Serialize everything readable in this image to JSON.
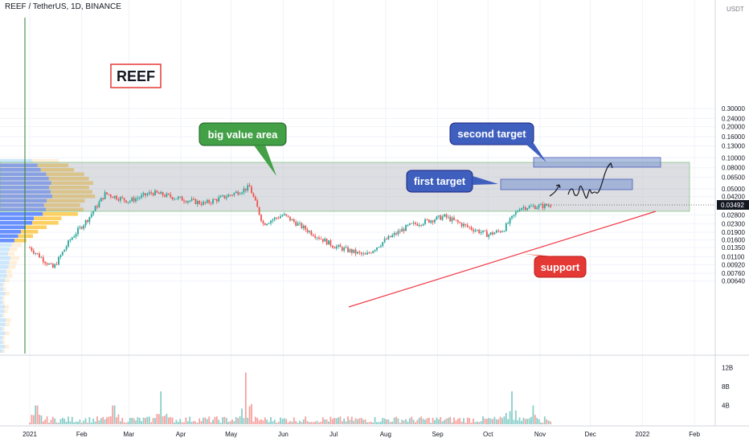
{
  "header": {
    "symbol_line": "REEF / TetherUS, 1D, BINANCE"
  },
  "price_axis": {
    "unit": "USDT",
    "ticks": [
      "0.30000",
      "0.24000",
      "0.20000",
      "0.16000",
      "0.13000",
      "0.10000",
      "0.08000",
      "0.06500",
      "0.05000",
      "0.04200",
      "0.02800",
      "0.02300",
      "0.01900",
      "0.01600",
      "0.01350",
      "0.01100",
      "0.00920",
      "0.00760",
      "0.00640"
    ],
    "last_price": "0.03492",
    "scale": "log"
  },
  "volume_axis": {
    "ticks": [
      "12B",
      "8B",
      "4B"
    ]
  },
  "time_axis": {
    "labels": [
      "2021",
      "Feb",
      "Mar",
      "Apr",
      "May",
      "Jun",
      "Jul",
      "Aug",
      "Sep",
      "Oct",
      "Nov",
      "Dec",
      "2022",
      "Feb"
    ]
  },
  "annotations": {
    "ticker_box": "REEF",
    "value_area": "big value area",
    "second_target": "second target",
    "first_target": "first target",
    "support": "support"
  },
  "colors": {
    "up": "#26a69a",
    "down": "#ef5350",
    "support_line": "#f23645",
    "value_area_fill": "#b2b5be",
    "target_fill": "#7f97d0",
    "label_green": "#43a047",
    "label_blue": "#3f5fbf",
    "label_red": "#e53935"
  },
  "chart_data": {
    "type": "candlestick",
    "title": "REEF / TetherUS, 1D, BINANCE",
    "price_scale": "log",
    "ylim": [
      0.006,
      0.33
    ],
    "key_price_levels": {
      "value_area_high": 0.057,
      "value_area_low": 0.034,
      "first_target": [
        0.042,
        0.046
      ],
      "second_target": [
        0.055,
        0.06
      ]
    },
    "price_path": [
      {
        "date": "2021-01-01",
        "close": 0.0135
      },
      {
        "date": "2021-01-15",
        "close": 0.0085
      },
      {
        "date": "2021-01-25",
        "close": 0.016
      },
      {
        "date": "2021-02-05",
        "close": 0.026
      },
      {
        "date": "2021-02-15",
        "close": 0.045
      },
      {
        "date": "2021-03-01",
        "close": 0.038
      },
      {
        "date": "2021-03-15",
        "close": 0.046
      },
      {
        "date": "2021-04-01",
        "close": 0.04
      },
      {
        "date": "2021-04-15",
        "close": 0.036
      },
      {
        "date": "2021-05-01",
        "close": 0.044
      },
      {
        "date": "2021-05-12",
        "close": 0.052
      },
      {
        "date": "2021-05-20",
        "close": 0.023
      },
      {
        "date": "2021-06-01",
        "close": 0.028
      },
      {
        "date": "2021-06-15",
        "close": 0.02
      },
      {
        "date": "2021-07-01",
        "close": 0.014
      },
      {
        "date": "2021-07-20",
        "close": 0.0113
      },
      {
        "date": "2021-08-01",
        "close": 0.016
      },
      {
        "date": "2021-08-15",
        "close": 0.022
      },
      {
        "date": "2021-09-05",
        "close": 0.027
      },
      {
        "date": "2021-09-20",
        "close": 0.021
      },
      {
        "date": "2021-10-01",
        "close": 0.018
      },
      {
        "date": "2021-10-10",
        "close": 0.02
      },
      {
        "date": "2021-10-20",
        "close": 0.033
      },
      {
        "date": "2021-11-01",
        "close": 0.034
      },
      {
        "date": "2021-11-08",
        "close": 0.03492
      }
    ],
    "volume_unit": "B",
    "volume_ylim": [
      0,
      14
    ],
    "volume_spikes": [
      {
        "date": "2021-01-05",
        "value": 4
      },
      {
        "date": "2021-02-20",
        "value": 4
      },
      {
        "date": "2021-03-20",
        "value": 7
      },
      {
        "date": "2021-05-10",
        "value": 11
      },
      {
        "date": "2021-10-15",
        "value": 7
      },
      {
        "date": "2021-10-28",
        "value": 4
      }
    ]
  }
}
